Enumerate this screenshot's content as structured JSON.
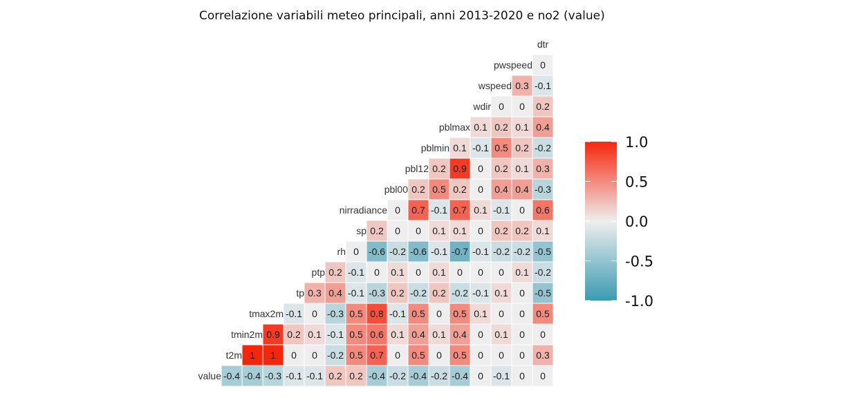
{
  "chart_data": {
    "type": "heatmap",
    "title": "Correlazione variabili meteo principali, anni 2013-2020 e no2 (value)",
    "variables": [
      "value",
      "t2m",
      "tmin2m",
      "tmax2m",
      "tp",
      "ptp",
      "rh",
      "sp",
      "nirradiance",
      "pbl00",
      "pbl12",
      "pblmin",
      "pblmax",
      "wdir",
      "wspeed",
      "pwspeed",
      "dtr"
    ],
    "cells": [
      [
        "value",
        "t2m",
        -0.4
      ],
      [
        "value",
        "tmin2m",
        -0.4
      ],
      [
        "value",
        "tmax2m",
        -0.3
      ],
      [
        "value",
        "tp",
        -0.1
      ],
      [
        "value",
        "ptp",
        -0.1
      ],
      [
        "value",
        "rh",
        0.2
      ],
      [
        "value",
        "sp",
        0.2
      ],
      [
        "value",
        "nirradiance",
        -0.4
      ],
      [
        "value",
        "pbl00",
        -0.2
      ],
      [
        "value",
        "pbl12",
        -0.4
      ],
      [
        "value",
        "pblmin",
        -0.2
      ],
      [
        "value",
        "pblmax",
        -0.4
      ],
      [
        "value",
        "wdir",
        0
      ],
      [
        "value",
        "wspeed",
        -0.1
      ],
      [
        "value",
        "pwspeed",
        0
      ],
      [
        "value",
        "dtr",
        0
      ],
      [
        "t2m",
        "tmin2m",
        1
      ],
      [
        "t2m",
        "tmax2m",
        1
      ],
      [
        "t2m",
        "tp",
        0
      ],
      [
        "t2m",
        "ptp",
        0
      ],
      [
        "t2m",
        "rh",
        -0.2
      ],
      [
        "t2m",
        "sp",
        0.5
      ],
      [
        "t2m",
        "nirradiance",
        0.7
      ],
      [
        "t2m",
        "pbl00",
        0
      ],
      [
        "t2m",
        "pbl12",
        0.5
      ],
      [
        "t2m",
        "pblmin",
        0
      ],
      [
        "t2m",
        "pblmax",
        0.5
      ],
      [
        "t2m",
        "wdir",
        0
      ],
      [
        "t2m",
        "wspeed",
        0
      ],
      [
        "t2m",
        "pwspeed",
        0
      ],
      [
        "t2m",
        "dtr",
        0.3
      ],
      [
        "tmin2m",
        "tmax2m",
        0.9
      ],
      [
        "tmin2m",
        "tp",
        0.2
      ],
      [
        "tmin2m",
        "ptp",
        0.1
      ],
      [
        "tmin2m",
        "rh",
        -0.1
      ],
      [
        "tmin2m",
        "sp",
        0.5
      ],
      [
        "tmin2m",
        "nirradiance",
        0.6
      ],
      [
        "tmin2m",
        "pbl00",
        0.1
      ],
      [
        "tmin2m",
        "pbl12",
        0.4
      ],
      [
        "tmin2m",
        "pblmin",
        0.1
      ],
      [
        "tmin2m",
        "pblmax",
        0.4
      ],
      [
        "tmin2m",
        "wdir",
        0
      ],
      [
        "tmin2m",
        "wspeed",
        0.1
      ],
      [
        "tmin2m",
        "pwspeed",
        0
      ],
      [
        "tmin2m",
        "dtr",
        0
      ],
      [
        "tmax2m",
        "tp",
        -0.1
      ],
      [
        "tmax2m",
        "ptp",
        0
      ],
      [
        "tmax2m",
        "rh",
        -0.3
      ],
      [
        "tmax2m",
        "sp",
        0.5
      ],
      [
        "tmax2m",
        "nirradiance",
        0.8
      ],
      [
        "tmax2m",
        "pbl00",
        -0.1
      ],
      [
        "tmax2m",
        "pbl12",
        0.5
      ],
      [
        "tmax2m",
        "pblmin",
        0
      ],
      [
        "tmax2m",
        "pblmax",
        0.5
      ],
      [
        "tmax2m",
        "wdir",
        0.1
      ],
      [
        "tmax2m",
        "wspeed",
        0
      ],
      [
        "tmax2m",
        "pwspeed",
        0
      ],
      [
        "tmax2m",
        "dtr",
        0.5
      ],
      [
        "tp",
        "ptp",
        0.3
      ],
      [
        "tp",
        "rh",
        0.4
      ],
      [
        "tp",
        "sp",
        -0.1
      ],
      [
        "tp",
        "nirradiance",
        -0.3
      ],
      [
        "tp",
        "pbl00",
        0.2
      ],
      [
        "tp",
        "pbl12",
        -0.2
      ],
      [
        "tp",
        "pblmin",
        0.2
      ],
      [
        "tp",
        "pblmax",
        -0.2
      ],
      [
        "tp",
        "wdir",
        -0.1
      ],
      [
        "tp",
        "wspeed",
        0.1
      ],
      [
        "tp",
        "pwspeed",
        0
      ],
      [
        "tp",
        "dtr",
        -0.5
      ],
      [
        "ptp",
        "rh",
        0.2
      ],
      [
        "ptp",
        "sp",
        -0.1
      ],
      [
        "ptp",
        "nirradiance",
        0
      ],
      [
        "ptp",
        "pbl00",
        0.1
      ],
      [
        "ptp",
        "pbl12",
        0
      ],
      [
        "ptp",
        "pblmin",
        0.1
      ],
      [
        "ptp",
        "pblmax",
        0
      ],
      [
        "ptp",
        "wdir",
        0
      ],
      [
        "ptp",
        "wspeed",
        0
      ],
      [
        "ptp",
        "pwspeed",
        0.1
      ],
      [
        "ptp",
        "dtr",
        -0.2
      ],
      [
        "rh",
        "sp",
        0
      ],
      [
        "rh",
        "nirradiance",
        -0.6
      ],
      [
        "rh",
        "pbl00",
        -0.2
      ],
      [
        "rh",
        "pbl12",
        -0.6
      ],
      [
        "rh",
        "pblmin",
        -0.1
      ],
      [
        "rh",
        "pblmax",
        -0.7
      ],
      [
        "rh",
        "wdir",
        -0.1
      ],
      [
        "rh",
        "wspeed",
        -0.2
      ],
      [
        "rh",
        "pwspeed",
        -0.2
      ],
      [
        "rh",
        "dtr",
        -0.5
      ],
      [
        "sp",
        "nirradiance",
        0.2
      ],
      [
        "sp",
        "pbl00",
        0
      ],
      [
        "sp",
        "pbl12",
        0
      ],
      [
        "sp",
        "pblmin",
        0.1
      ],
      [
        "sp",
        "pblmax",
        0.1
      ],
      [
        "sp",
        "wdir",
        0
      ],
      [
        "sp",
        "wspeed",
        0.2
      ],
      [
        "sp",
        "pwspeed",
        0.2
      ],
      [
        "sp",
        "dtr",
        0.1
      ],
      [
        "nirradiance",
        "pbl00",
        0
      ],
      [
        "nirradiance",
        "pbl12",
        0.7
      ],
      [
        "nirradiance",
        "pblmin",
        -0.1
      ],
      [
        "nirradiance",
        "pblmax",
        0.7
      ],
      [
        "nirradiance",
        "wdir",
        0.1
      ],
      [
        "nirradiance",
        "wspeed",
        -0.1
      ],
      [
        "nirradiance",
        "pwspeed",
        0
      ],
      [
        "nirradiance",
        "dtr",
        0.6
      ],
      [
        "pbl00",
        "pbl12",
        0.2
      ],
      [
        "pbl00",
        "pblmin",
        0.5
      ],
      [
        "pbl00",
        "pblmax",
        0.2
      ],
      [
        "pbl00",
        "wdir",
        0
      ],
      [
        "pbl00",
        "wspeed",
        0.4
      ],
      [
        "pbl00",
        "pwspeed",
        0.4
      ],
      [
        "pbl00",
        "dtr",
        -0.3
      ],
      [
        "pbl12",
        "pblmin",
        0.2
      ],
      [
        "pbl12",
        "pblmax",
        0.9
      ],
      [
        "pbl12",
        "wdir",
        0
      ],
      [
        "pbl12",
        "wspeed",
        0.2
      ],
      [
        "pbl12",
        "pwspeed",
        0.1
      ],
      [
        "pbl12",
        "dtr",
        0.3
      ],
      [
        "pblmin",
        "pblmax",
        0.1
      ],
      [
        "pblmin",
        "wdir",
        -0.1
      ],
      [
        "pblmin",
        "wspeed",
        0.5
      ],
      [
        "pblmin",
        "pwspeed",
        0.2
      ],
      [
        "pblmin",
        "dtr",
        -0.2
      ],
      [
        "pblmax",
        "wdir",
        0.1
      ],
      [
        "pblmax",
        "wspeed",
        0.2
      ],
      [
        "pblmax",
        "pwspeed",
        0.1
      ],
      [
        "pblmax",
        "dtr",
        0.4
      ],
      [
        "wdir",
        "wspeed",
        0
      ],
      [
        "wdir",
        "pwspeed",
        0
      ],
      [
        "wdir",
        "dtr",
        0.2
      ],
      [
        "wspeed",
        "pwspeed",
        0.3
      ],
      [
        "wspeed",
        "dtr",
        -0.1
      ],
      [
        "pwspeed",
        "dtr",
        0
      ]
    ],
    "scale": {
      "min": -1,
      "max": 1,
      "low_color": "#3a9ab2",
      "mid_color": "#eeeeee",
      "high_color": "#f6260d"
    },
    "legend": {
      "position": "right",
      "ticks": [
        1.0,
        0.5,
        0.0,
        -0.5,
        -1.0
      ],
      "tick_labels": [
        "1.0",
        "0.5",
        "0.0",
        "-0.5",
        "-1.0"
      ]
    }
  }
}
